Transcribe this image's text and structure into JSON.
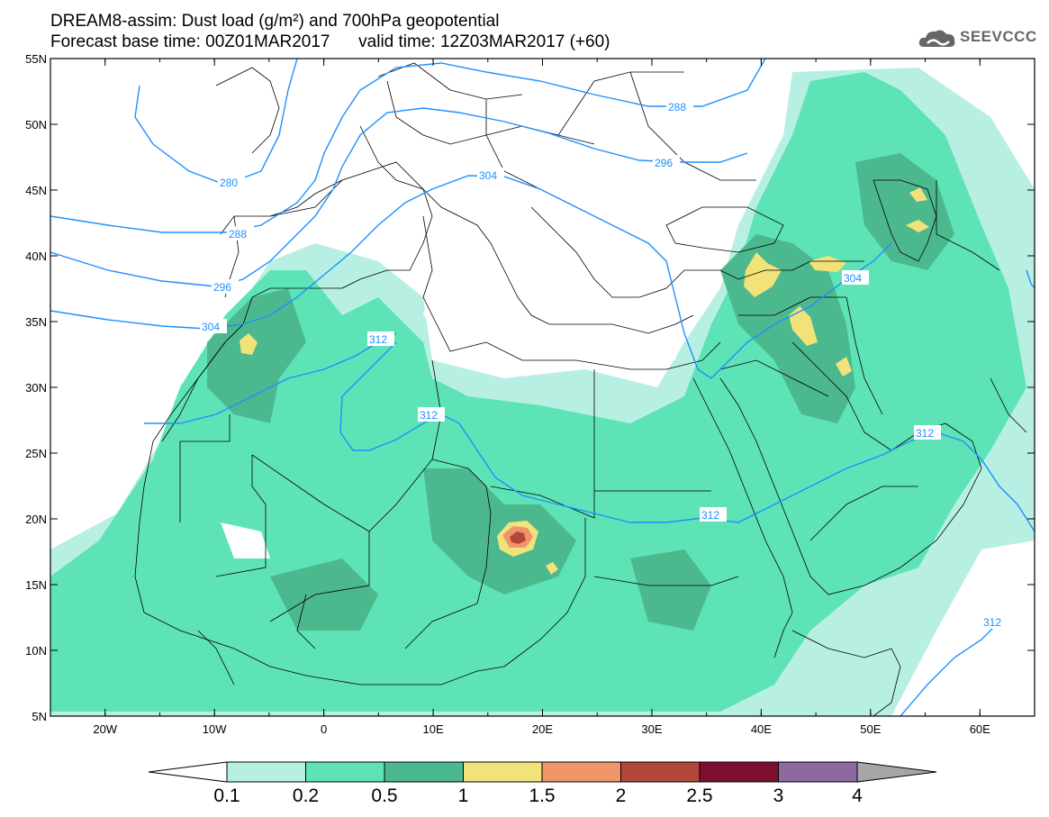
{
  "title_line1": "DREAM8-assim: Dust load (g/m²) and 700hPa geopotential",
  "title_line2": "Forecast base time: 00Z01MAR2017      valid time: 12Z03MAR2017 (+60)",
  "logo_text": "SEEVCCC",
  "logo_icon": "cloud-icon",
  "lat_labels": [
    "55N",
    "50N",
    "45N",
    "40N",
    "35N",
    "30N",
    "25N",
    "20N",
    "15N",
    "10N",
    "5N"
  ],
  "lon_labels": [
    "20W",
    "10W",
    "0",
    "10E",
    "20E",
    "30E",
    "40E",
    "50E",
    "60E"
  ],
  "contour_labels": [
    "280",
    "288",
    "288",
    "296",
    "296",
    "304",
    "304",
    "304",
    "312",
    "312",
    "312",
    "312",
    "312"
  ],
  "colorbar": {
    "labels": [
      "0.1",
      "0.2",
      "0.5",
      "1",
      "1.5",
      "2",
      "2.5",
      "3",
      "4"
    ],
    "colors": [
      "#b7efe3",
      "#5ee3b7",
      "#4cb88e",
      "#f2e27a",
      "#f0956a",
      "#b4473b",
      "#7a0f2e",
      "#8c6aa0"
    ],
    "under_color": "#ffffff",
    "over_color": "#a6a6a6"
  },
  "colors": {
    "contour": "#1e90ff",
    "border": "#000000",
    "frame": "#000000"
  }
}
